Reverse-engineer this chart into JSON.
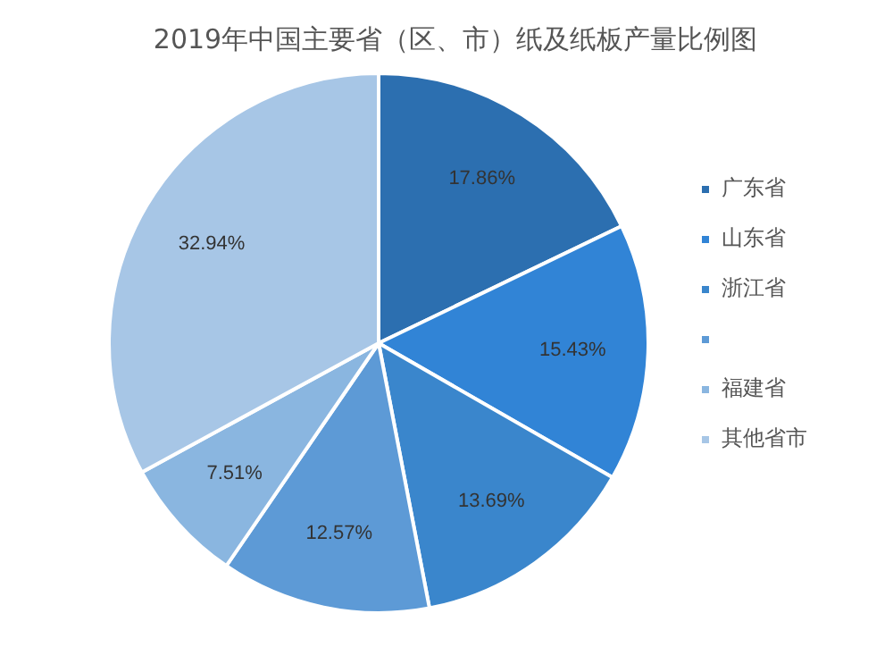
{
  "chart_data": {
    "type": "pie",
    "title": "2019年中国主要省（区、市）纸及纸板产量比例图",
    "categories": [
      "广东省",
      "山东省",
      "浙江省",
      null,
      "福建省",
      "其他省市"
    ],
    "values": [
      17.86,
      15.43,
      13.69,
      12.57,
      7.51,
      32.94
    ],
    "value_labels": [
      "17.86%",
      "15.43%",
      "13.69%",
      "12.57%",
      "7.51%",
      "32.94%"
    ],
    "colors": [
      "#2c6fb0",
      "#3184d6",
      "#3a86cc",
      "#5d9ad6",
      "#8ab6e0",
      "#a7c6e6"
    ],
    "legend": "right"
  }
}
